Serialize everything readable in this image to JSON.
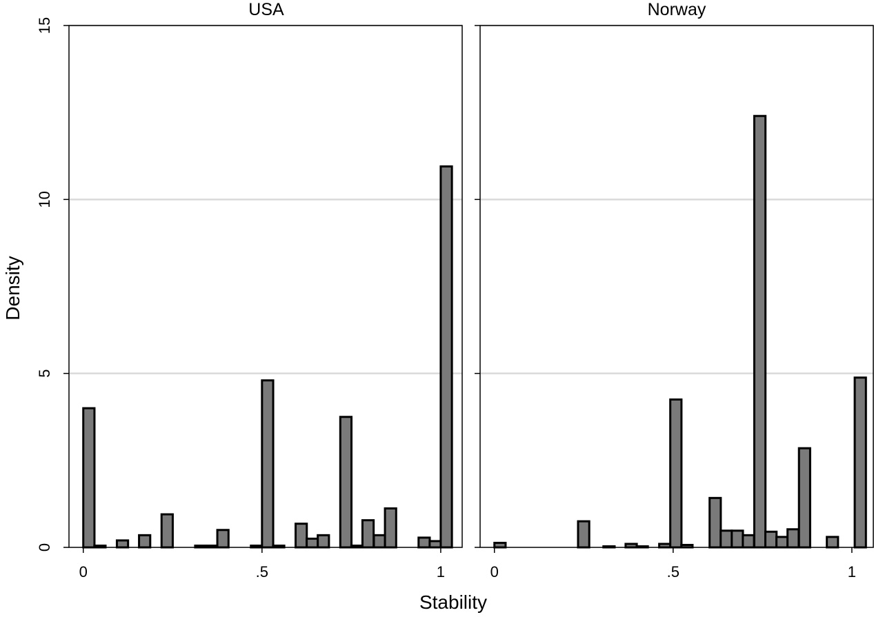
{
  "chart_data": {
    "type": "bar",
    "xlabel": "Stability",
    "ylabel": "Density",
    "ylim": [
      0,
      15
    ],
    "grid": true,
    "legend": "none",
    "colors": {
      "bar_fill": "#7a7a7a",
      "bar_stroke": "#000000",
      "grid": "#d9d9d9",
      "frame": "#000000"
    },
    "panels": [
      {
        "title": "USA",
        "xlim": [
          -0.04,
          1.06
        ],
        "bin_width": 0.0313,
        "x_ticks": [
          {
            "value": 0,
            "label": "0"
          },
          {
            "value": 0.5,
            "label": ".5"
          },
          {
            "value": 1,
            "label": "1"
          }
        ],
        "y_ticks": [
          {
            "value": 0,
            "label": "0"
          },
          {
            "value": 5,
            "label": "5"
          },
          {
            "value": 10,
            "label": "10"
          },
          {
            "value": 15,
            "label": "15"
          }
        ],
        "bins": [
          {
            "x": 0.0,
            "y": 4.0
          },
          {
            "x": 0.031,
            "y": 0.05
          },
          {
            "x": 0.094,
            "y": 0.2
          },
          {
            "x": 0.156,
            "y": 0.35
          },
          {
            "x": 0.219,
            "y": 0.95
          },
          {
            "x": 0.313,
            "y": 0.05
          },
          {
            "x": 0.344,
            "y": 0.05
          },
          {
            "x": 0.375,
            "y": 0.5
          },
          {
            "x": 0.469,
            "y": 0.05
          },
          {
            "x": 0.5,
            "y": 4.8
          },
          {
            "x": 0.531,
            "y": 0.05
          },
          {
            "x": 0.594,
            "y": 0.68
          },
          {
            "x": 0.625,
            "y": 0.25
          },
          {
            "x": 0.656,
            "y": 0.35
          },
          {
            "x": 0.719,
            "y": 3.75
          },
          {
            "x": 0.75,
            "y": 0.05
          },
          {
            "x": 0.781,
            "y": 0.78
          },
          {
            "x": 0.813,
            "y": 0.35
          },
          {
            "x": 0.844,
            "y": 1.12
          },
          {
            "x": 0.938,
            "y": 0.28
          },
          {
            "x": 0.969,
            "y": 0.18
          },
          {
            "x": 1.0,
            "y": 10.95
          }
        ]
      },
      {
        "title": "Norway",
        "xlim": [
          -0.04,
          1.06
        ],
        "bin_width": 0.0313,
        "x_ticks": [
          {
            "value": 0,
            "label": "0"
          },
          {
            "value": 0.5,
            "label": ".5"
          },
          {
            "value": 1,
            "label": "1"
          }
        ],
        "y_ticks": [
          {
            "value": 0,
            "label": ""
          },
          {
            "value": 5,
            "label": ""
          },
          {
            "value": 10,
            "label": ""
          },
          {
            "value": 15,
            "label": ""
          }
        ],
        "bins": [
          {
            "x": 0.0,
            "y": 0.13
          },
          {
            "x": 0.234,
            "y": 0.75
          },
          {
            "x": 0.305,
            "y": 0.03
          },
          {
            "x": 0.367,
            "y": 0.1
          },
          {
            "x": 0.398,
            "y": 0.03
          },
          {
            "x": 0.461,
            "y": 0.1
          },
          {
            "x": 0.492,
            "y": 4.25
          },
          {
            "x": 0.523,
            "y": 0.07
          },
          {
            "x": 0.602,
            "y": 1.42
          },
          {
            "x": 0.633,
            "y": 0.48
          },
          {
            "x": 0.664,
            "y": 0.48
          },
          {
            "x": 0.695,
            "y": 0.35
          },
          {
            "x": 0.727,
            "y": 12.4
          },
          {
            "x": 0.758,
            "y": 0.45
          },
          {
            "x": 0.789,
            "y": 0.3
          },
          {
            "x": 0.82,
            "y": 0.52
          },
          {
            "x": 0.852,
            "y": 2.85
          },
          {
            "x": 0.93,
            "y": 0.3
          },
          {
            "x": 1.008,
            "y": 4.88
          }
        ]
      }
    ]
  }
}
